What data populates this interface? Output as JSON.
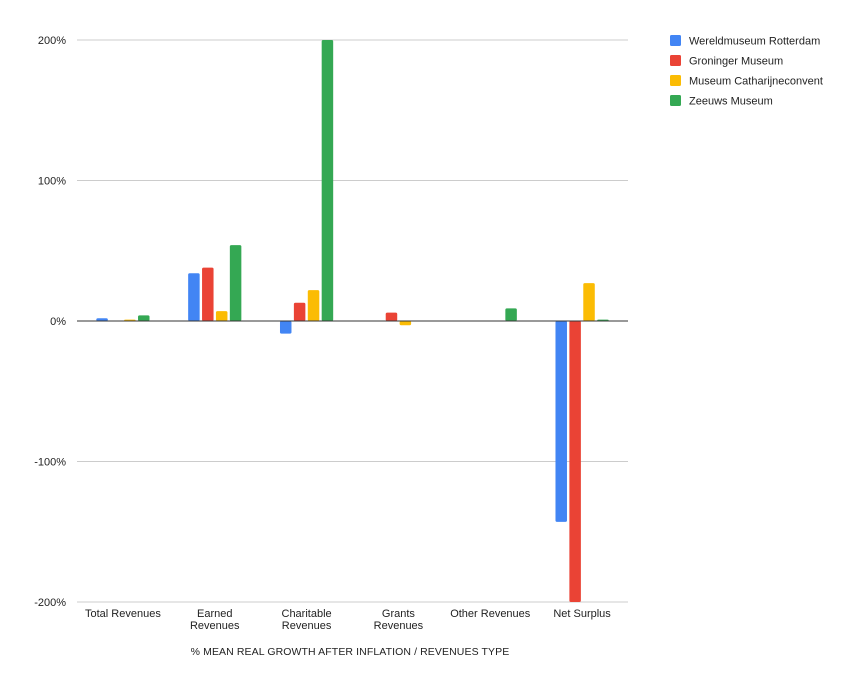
{
  "chart_data": {
    "type": "bar",
    "title": "",
    "xlabel": "% MEAN REAL GROWTH AFTER INFLATION / REVENUES TYPE",
    "ylabel": "",
    "ylim": [
      -200,
      200
    ],
    "yticks": [
      200,
      100,
      0,
      -100,
      -200
    ],
    "ytick_labels": [
      "200%",
      "100%",
      "0%",
      "-100%",
      "-200%"
    ],
    "grid": true,
    "legend_position": "top-right",
    "categories": [
      [
        "Total Revenues"
      ],
      [
        "Earned",
        "Revenues"
      ],
      [
        "Charitable",
        "Revenues"
      ],
      [
        "Grants",
        "Revenues"
      ],
      [
        "Other Revenues"
      ],
      [
        "Net Surplus"
      ]
    ],
    "series": [
      {
        "name": "Wereldmuseum Rotterdam",
        "color": "#4285F4",
        "values": [
          2,
          34,
          -9,
          0,
          0,
          -143
        ]
      },
      {
        "name": "Groninger Museum",
        "color": "#EA4335",
        "values": [
          0,
          38,
          13,
          6,
          0,
          -200
        ]
      },
      {
        "name": "Museum Catharijneconvent",
        "color": "#FBBC04",
        "values": [
          1,
          7,
          22,
          -3,
          0,
          27
        ]
      },
      {
        "name": "Zeeuws Museum",
        "color": "#34A853",
        "values": [
          4,
          54,
          200,
          0,
          9,
          1
        ]
      }
    ]
  }
}
